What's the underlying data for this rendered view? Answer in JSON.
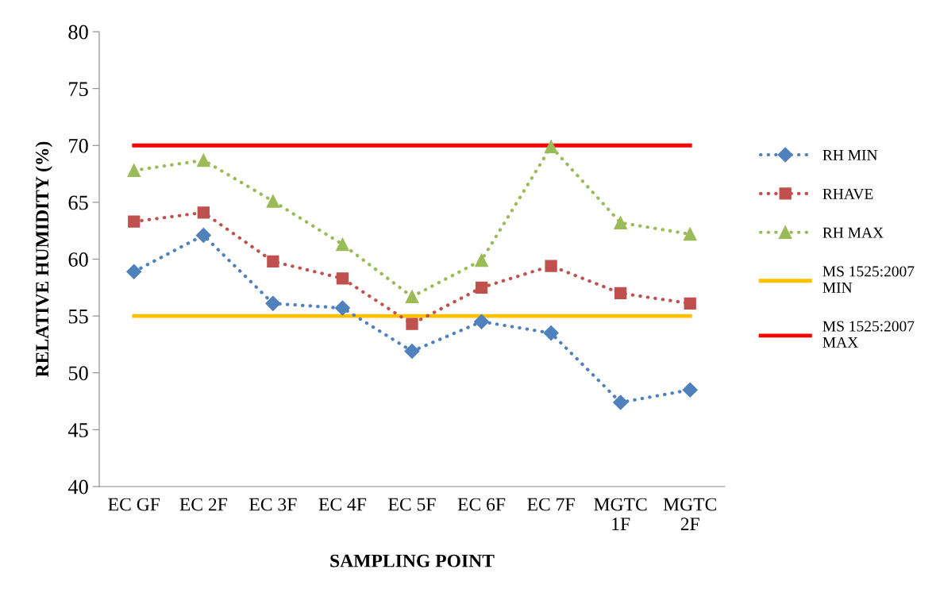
{
  "chart_data": {
    "type": "line",
    "xlabel": "SAMPLING POINT",
    "ylabel": "RELATIVE HUMIDITY (%)",
    "categories": [
      "EC GF",
      "EC 2F",
      "EC 3F",
      "EC 4F",
      "EC 5F",
      "EC 6F",
      "EC 7F",
      "MGTC\n1F",
      "MGTC\n2F"
    ],
    "series": [
      {
        "name": "RH MIN",
        "color": "#4f81bd",
        "marker": "diamond",
        "line_style": "dotted",
        "values": [
          58.9,
          62.1,
          56.1,
          55.7,
          51.9,
          54.5,
          53.5,
          47.4,
          48.5
        ]
      },
      {
        "name": "RHAVE",
        "color": "#c0504d",
        "marker": "square",
        "line_style": "dotted",
        "values": [
          63.3,
          64.1,
          59.8,
          58.3,
          54.3,
          57.5,
          59.4,
          57.0,
          56.1
        ]
      },
      {
        "name": "RH MAX",
        "color": "#9bbb59",
        "marker": "triangle",
        "line_style": "dotted",
        "values": [
          67.8,
          68.7,
          65.1,
          61.3,
          56.7,
          59.9,
          69.9,
          63.2,
          62.2
        ]
      },
      {
        "name": "MS 1525:2007\nMIN",
        "color": "#ffc000",
        "marker": "none",
        "line_style": "solid",
        "values": [
          55,
          55,
          55,
          55,
          55,
          55,
          55,
          55,
          55
        ]
      },
      {
        "name": "MS 1525:2007\nMAX",
        "color": "#ff0000",
        "marker": "none",
        "line_style": "solid",
        "values": [
          70,
          70,
          70,
          70,
          70,
          70,
          70,
          70,
          70
        ]
      }
    ],
    "ylim": [
      40,
      80
    ],
    "yticks": [
      40,
      45,
      50,
      55,
      60,
      65,
      70,
      75,
      80
    ],
    "grid": false,
    "legend": "right"
  }
}
